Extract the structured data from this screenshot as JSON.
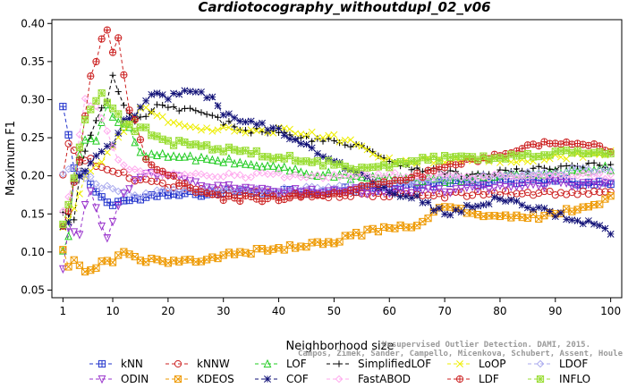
{
  "chart_data": {
    "type": "line",
    "title": "Cardiotocography_withoutdupl_02_v06",
    "xlabel": "Neighborhood size",
    "ylabel": "Maximum F1",
    "xlim": [
      1,
      100
    ],
    "ylim": [
      0.05,
      0.4
    ],
    "xticks": [
      1,
      10,
      20,
      30,
      40,
      50,
      60,
      70,
      80,
      90,
      100
    ],
    "yticks": [
      0.05,
      0.1,
      0.15,
      0.2,
      0.25,
      0.3,
      0.35,
      0.4
    ],
    "ytick_labels": [
      "0.05",
      "0.10",
      "0.15",
      "0.20",
      "0.25",
      "0.30",
      "0.35",
      "0.40"
    ],
    "grid": false,
    "legend_position": "bottom",
    "credit": [
      "Campos, Zimek, Sander, Campello, Micenkova, Schubert, Assent, Houle",
      "Unsupervised Outlier Detection. DAMI, 2015."
    ],
    "series": [
      {
        "name": "kNN",
        "color": "#2233cc",
        "marker": "square-plus",
        "keys": [
          [
            1,
            0.29
          ],
          [
            2,
            0.25
          ],
          [
            3,
            0.21
          ],
          [
            4,
            0.2
          ],
          [
            5,
            0.2
          ],
          [
            6,
            0.19
          ],
          [
            7,
            0.18
          ],
          [
            8,
            0.17
          ],
          [
            10,
            0.165
          ],
          [
            15,
            0.17
          ],
          [
            20,
            0.175
          ],
          [
            30,
            0.178
          ],
          [
            40,
            0.18
          ],
          [
            50,
            0.18
          ],
          [
            60,
            0.185
          ],
          [
            70,
            0.19
          ],
          [
            80,
            0.192
          ],
          [
            90,
            0.193
          ],
          [
            100,
            0.19
          ]
        ]
      },
      {
        "name": "kNNW",
        "color": "#cc2222",
        "marker": "circle",
        "keys": [
          [
            1,
            0.2
          ],
          [
            2,
            0.24
          ],
          [
            3,
            0.23
          ],
          [
            4,
            0.22
          ],
          [
            5,
            0.22
          ],
          [
            6,
            0.22
          ],
          [
            8,
            0.21
          ],
          [
            10,
            0.205
          ],
          [
            15,
            0.195
          ],
          [
            20,
            0.185
          ],
          [
            25,
            0.18
          ],
          [
            30,
            0.178
          ],
          [
            40,
            0.175
          ],
          [
            50,
            0.175
          ],
          [
            60,
            0.175
          ],
          [
            70,
            0.175
          ],
          [
            80,
            0.177
          ],
          [
            90,
            0.178
          ],
          [
            100,
            0.177
          ]
        ]
      },
      {
        "name": "LOF",
        "color": "#22cc22",
        "marker": "triangle-up",
        "keys": [
          [
            1,
            0.1
          ],
          [
            2,
            0.12
          ],
          [
            3,
            0.2
          ],
          [
            5,
            0.25
          ],
          [
            7,
            0.25
          ],
          [
            9,
            0.29
          ],
          [
            11,
            0.27
          ],
          [
            13,
            0.26
          ],
          [
            15,
            0.23
          ],
          [
            20,
            0.225
          ],
          [
            30,
            0.22
          ],
          [
            40,
            0.21
          ],
          [
            50,
            0.2
          ],
          [
            60,
            0.195
          ],
          [
            70,
            0.195
          ],
          [
            80,
            0.2
          ],
          [
            90,
            0.205
          ],
          [
            100,
            0.21
          ]
        ]
      },
      {
        "name": "SimplifiedLOF",
        "color": "#000000",
        "marker": "plus",
        "keys": [
          [
            1,
            0.15
          ],
          [
            2,
            0.15
          ],
          [
            3,
            0.14
          ],
          [
            4,
            0.2
          ],
          [
            5,
            0.23
          ],
          [
            6,
            0.25
          ],
          [
            8,
            0.29
          ],
          [
            9,
            0.3
          ],
          [
            10,
            0.33
          ],
          [
            11,
            0.31
          ],
          [
            12,
            0.29
          ],
          [
            14,
            0.27
          ],
          [
            16,
            0.28
          ],
          [
            18,
            0.29
          ],
          [
            20,
            0.29
          ],
          [
            25,
            0.285
          ],
          [
            30,
            0.27
          ],
          [
            35,
            0.26
          ],
          [
            40,
            0.255
          ],
          [
            45,
            0.25
          ],
          [
            50,
            0.245
          ],
          [
            55,
            0.24
          ],
          [
            60,
            0.22
          ],
          [
            65,
            0.21
          ],
          [
            70,
            0.205
          ],
          [
            75,
            0.2
          ],
          [
            80,
            0.205
          ],
          [
            90,
            0.21
          ],
          [
            100,
            0.215
          ]
        ]
      },
      {
        "name": "LoOP",
        "color": "#eeee00",
        "marker": "x",
        "keys": [
          [
            1,
            0.13
          ],
          [
            3,
            0.16
          ],
          [
            5,
            0.2
          ],
          [
            8,
            0.22
          ],
          [
            10,
            0.24
          ],
          [
            12,
            0.26
          ],
          [
            14,
            0.28
          ],
          [
            16,
            0.29
          ],
          [
            18,
            0.28
          ],
          [
            20,
            0.27
          ],
          [
            25,
            0.26
          ],
          [
            30,
            0.26
          ],
          [
            40,
            0.26
          ],
          [
            50,
            0.25
          ],
          [
            55,
            0.24
          ],
          [
            60,
            0.22
          ],
          [
            70,
            0.22
          ],
          [
            80,
            0.22
          ],
          [
            90,
            0.225
          ],
          [
            100,
            0.23
          ]
        ]
      },
      {
        "name": "LDOF",
        "color": "#aaaaee",
        "marker": "diamond",
        "keys": [
          [
            1,
            0.2
          ],
          [
            3,
            0.21
          ],
          [
            5,
            0.2
          ],
          [
            7,
            0.19
          ],
          [
            10,
            0.18
          ],
          [
            15,
            0.175
          ],
          [
            20,
            0.18
          ],
          [
            25,
            0.18
          ],
          [
            30,
            0.18
          ],
          [
            40,
            0.18
          ],
          [
            50,
            0.185
          ],
          [
            60,
            0.19
          ],
          [
            70,
            0.195
          ],
          [
            80,
            0.2
          ],
          [
            90,
            0.205
          ],
          [
            100,
            0.21
          ]
        ]
      },
      {
        "name": "ODIN",
        "color": "#9933cc",
        "marker": "triangle-down",
        "keys": [
          [
            1,
            0.075
          ],
          [
            2,
            0.13
          ],
          [
            3,
            0.13
          ],
          [
            4,
            0.125
          ],
          [
            5,
            0.16
          ],
          [
            6,
            0.18
          ],
          [
            7,
            0.16
          ],
          [
            8,
            0.13
          ],
          [
            9,
            0.12
          ],
          [
            10,
            0.14
          ],
          [
            12,
            0.18
          ],
          [
            15,
            0.2
          ],
          [
            20,
            0.2
          ],
          [
            25,
            0.19
          ],
          [
            30,
            0.185
          ],
          [
            40,
            0.18
          ],
          [
            50,
            0.18
          ],
          [
            60,
            0.18
          ],
          [
            70,
            0.18
          ],
          [
            80,
            0.185
          ],
          [
            90,
            0.19
          ],
          [
            100,
            0.19
          ]
        ]
      },
      {
        "name": "KDEOS",
        "color": "#ee9900",
        "marker": "square-x",
        "keys": [
          [
            1,
            0.1
          ],
          [
            2,
            0.08
          ],
          [
            3,
            0.09
          ],
          [
            4,
            0.08
          ],
          [
            5,
            0.075
          ],
          [
            6,
            0.08
          ],
          [
            8,
            0.085
          ],
          [
            10,
            0.09
          ],
          [
            12,
            0.1
          ],
          [
            14,
            0.09
          ],
          [
            16,
            0.09
          ],
          [
            20,
            0.085
          ],
          [
            25,
            0.09
          ],
          [
            30,
            0.095
          ],
          [
            40,
            0.105
          ],
          [
            50,
            0.115
          ],
          [
            55,
            0.125
          ],
          [
            60,
            0.13
          ],
          [
            65,
            0.135
          ],
          [
            68,
            0.15
          ],
          [
            70,
            0.16
          ],
          [
            75,
            0.15
          ],
          [
            80,
            0.15
          ],
          [
            85,
            0.145
          ],
          [
            90,
            0.15
          ],
          [
            95,
            0.16
          ],
          [
            100,
            0.17
          ]
        ]
      },
      {
        "name": "COF",
        "color": "#111177",
        "marker": "star",
        "keys": [
          [
            1,
            0.13
          ],
          [
            2,
            0.14
          ],
          [
            3,
            0.19
          ],
          [
            5,
            0.21
          ],
          [
            8,
            0.23
          ],
          [
            10,
            0.24
          ],
          [
            12,
            0.27
          ],
          [
            14,
            0.28
          ],
          [
            16,
            0.3
          ],
          [
            18,
            0.31
          ],
          [
            20,
            0.3
          ],
          [
            22,
            0.31
          ],
          [
            25,
            0.31
          ],
          [
            28,
            0.3
          ],
          [
            30,
            0.28
          ],
          [
            35,
            0.27
          ],
          [
            40,
            0.26
          ],
          [
            45,
            0.24
          ],
          [
            50,
            0.22
          ],
          [
            55,
            0.2
          ],
          [
            60,
            0.18
          ],
          [
            65,
            0.17
          ],
          [
            70,
            0.15
          ],
          [
            75,
            0.16
          ],
          [
            80,
            0.17
          ],
          [
            85,
            0.16
          ],
          [
            90,
            0.15
          ],
          [
            95,
            0.14
          ],
          [
            100,
            0.125
          ]
        ]
      },
      {
        "name": "FastABOD",
        "color": "#ffaaee",
        "marker": "diamond",
        "keys": [
          [
            1,
            0.15
          ],
          [
            3,
            0.2
          ],
          [
            5,
            0.3
          ],
          [
            7,
            0.29
          ],
          [
            9,
            0.26
          ],
          [
            11,
            0.22
          ],
          [
            13,
            0.21
          ],
          [
            15,
            0.205
          ],
          [
            20,
            0.2
          ],
          [
            30,
            0.2
          ],
          [
            40,
            0.2
          ],
          [
            50,
            0.2
          ],
          [
            60,
            0.2
          ],
          [
            70,
            0.2
          ],
          [
            80,
            0.2
          ],
          [
            90,
            0.2
          ],
          [
            100,
            0.2
          ]
        ]
      },
      {
        "name": "LDF",
        "color": "#cc2222",
        "marker": "circle-plus",
        "keys": [
          [
            1,
            0.13
          ],
          [
            2,
            0.15
          ],
          [
            3,
            0.19
          ],
          [
            4,
            0.22
          ],
          [
            5,
            0.28
          ],
          [
            6,
            0.33
          ],
          [
            7,
            0.35
          ],
          [
            8,
            0.38
          ],
          [
            9,
            0.39
          ],
          [
            10,
            0.36
          ],
          [
            11,
            0.38
          ],
          [
            12,
            0.33
          ],
          [
            13,
            0.29
          ],
          [
            14,
            0.27
          ],
          [
            16,
            0.22
          ],
          [
            20,
            0.2
          ],
          [
            25,
            0.18
          ],
          [
            30,
            0.17
          ],
          [
            40,
            0.17
          ],
          [
            50,
            0.18
          ],
          [
            60,
            0.19
          ],
          [
            70,
            0.21
          ],
          [
            80,
            0.23
          ],
          [
            90,
            0.245
          ],
          [
            100,
            0.235
          ]
        ]
      },
      {
        "name": "INFLO",
        "color": "#99dd33",
        "marker": "square-star",
        "keys": [
          [
            1,
            0.14
          ],
          [
            2,
            0.16
          ],
          [
            3,
            0.2
          ],
          [
            4,
            0.24
          ],
          [
            5,
            0.27
          ],
          [
            6,
            0.29
          ],
          [
            7,
            0.3
          ],
          [
            8,
            0.31
          ],
          [
            9,
            0.3
          ],
          [
            10,
            0.29
          ],
          [
            12,
            0.27
          ],
          [
            14,
            0.26
          ],
          [
            16,
            0.26
          ],
          [
            18,
            0.25
          ],
          [
            20,
            0.245
          ],
          [
            25,
            0.24
          ],
          [
            30,
            0.235
          ],
          [
            35,
            0.23
          ],
          [
            40,
            0.225
          ],
          [
            45,
            0.22
          ],
          [
            50,
            0.215
          ],
          [
            55,
            0.21
          ],
          [
            60,
            0.215
          ],
          [
            65,
            0.22
          ],
          [
            70,
            0.225
          ],
          [
            80,
            0.225
          ],
          [
            90,
            0.23
          ],
          [
            100,
            0.23
          ]
        ]
      }
    ]
  }
}
